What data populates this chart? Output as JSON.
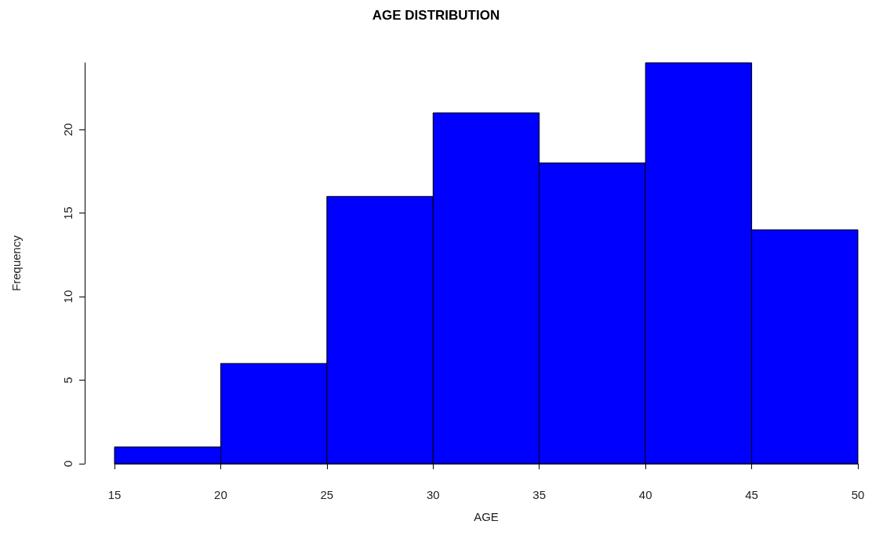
{
  "chart_data": {
    "type": "histogram",
    "title": "AGE DISTRIBUTION",
    "xlabel": "AGE",
    "ylabel": "Frequency",
    "bins": [
      15,
      20,
      25,
      30,
      35,
      40,
      45,
      50
    ],
    "values": [
      1,
      6,
      16,
      21,
      18,
      24,
      14
    ],
    "color": "#0000ff",
    "xlim": [
      15,
      50
    ],
    "xticks": [
      15,
      20,
      25,
      30,
      35,
      40,
      45,
      50
    ],
    "ylim": [
      0,
      24
    ],
    "yticks": [
      0,
      5,
      10,
      15,
      20
    ],
    "grid": false
  }
}
